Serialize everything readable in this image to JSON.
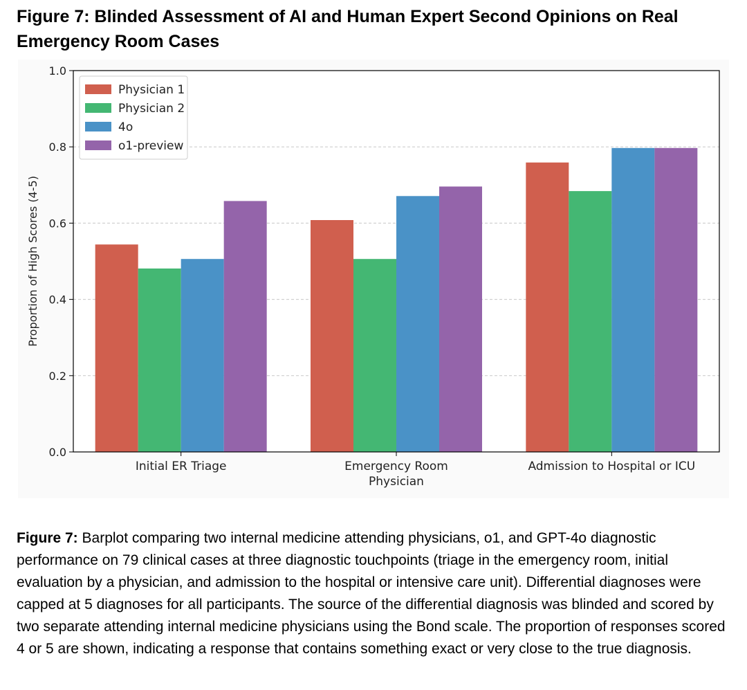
{
  "figure": {
    "title": "Figure 7: Blinded Assessment of AI and Human Expert Second Opinions on Real Emergency Room Cases",
    "caption_label": "Figure 7:",
    "caption_text": " Barplot comparing two internal medicine attending physicians, o1, and GPT-4o diagnostic performance on 79 clinical cases at three diagnostic touchpoints (triage in the emergency room, initial evaluation by a physician, and admission to the hospital or intensive care unit). Differential diagnoses were capped at 5 diagnoses for all participants. The source of the differential diagnosis was blinded and scored by two separate attending internal medicine physicians using the Bond scale. The proportion of responses scored 4 or 5 are shown, indicating a response that contains something exact or very close to the true diagnosis."
  },
  "chart_data": {
    "type": "bar",
    "title": "",
    "xlabel": "",
    "ylabel": "Proportion of High Scores (4-5)",
    "ylim": [
      0,
      1.0
    ],
    "yticks": [
      "0.0",
      "0.2",
      "0.4",
      "0.6",
      "0.8",
      "1.0"
    ],
    "grid": "horizontal dashed",
    "legend_position": "top-left",
    "categories": [
      [
        "Initial ER Triage"
      ],
      [
        "Emergency Room",
        "Physician"
      ],
      [
        "Admission to Hospital or ICU"
      ]
    ],
    "series": [
      {
        "name": "Physician 1",
        "color": "#d05f4e",
        "values": [
          0.544,
          0.608,
          0.759
        ]
      },
      {
        "name": "Physician 2",
        "color": "#44b773",
        "values": [
          0.481,
          0.506,
          0.684
        ]
      },
      {
        "name": "4o",
        "color": "#4a92c7",
        "values": [
          0.506,
          0.671,
          0.797
        ]
      },
      {
        "name": "o1-preview",
        "color": "#9464aa",
        "values": [
          0.658,
          0.696,
          0.797
        ]
      }
    ]
  }
}
